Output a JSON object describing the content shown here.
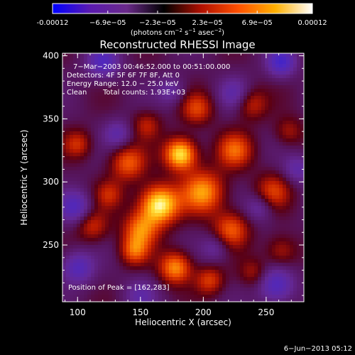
{
  "colorbar": {
    "ticks": [
      "-0.00012",
      "−6.9e−05",
      "−2.3e−05",
      "2.3e−05",
      "6.9e−05",
      "0.00012"
    ],
    "tick_values": [
      -0.00012,
      -6.9e-05,
      -2.3e-05,
      2.3e-05,
      6.9e-05,
      0.00012
    ],
    "range": [
      -0.00012,
      0.00012
    ],
    "unit_base": "(photons cm",
    "unit_exp1": "−2",
    "unit_mid": " s",
    "unit_exp2": "−1",
    "unit_mid2": " asec",
    "unit_exp3": "−2",
    "unit_end": ")",
    "colors": [
      "#0000ff",
      "#5a1ab0",
      "#6a2a8a",
      "#000000",
      "#b01000",
      "#ff5000",
      "#ffb000",
      "#ffffff"
    ]
  },
  "chart_data": {
    "type": "heatmap",
    "title": "Reconstructed RHESSI Image",
    "xlabel": "Heliocentric X (arcsec)",
    "ylabel": "Heliocentric Y (arcsec)",
    "xlim": [
      88,
      280
    ],
    "ylim": [
      205,
      402
    ],
    "xticks": [
      100,
      150,
      200,
      250
    ],
    "yticks": [
      250,
      300,
      350,
      400
    ],
    "annotations": {
      "time": "7−Mar−2003 00:46:52.000 to 00:51:00.000",
      "detectors": "Detectors: 4F 5F 6F 7F 8F, Att 0",
      "energy": "Energy Range: 12.0 − 25.0 keV",
      "method": "Clean",
      "counts": "Total counts: 1.93E+03",
      "peak": "Position of Peak = [162,283]"
    },
    "peak": [
      162,
      283
    ],
    "blobs": [
      {
        "x": 165,
        "y": 282,
        "amp": 1.0,
        "s": 11
      },
      {
        "x": 182,
        "y": 322,
        "amp": 0.95,
        "s": 9
      },
      {
        "x": 200,
        "y": 292,
        "amp": 0.7,
        "s": 12
      },
      {
        "x": 140,
        "y": 315,
        "amp": 0.55,
        "s": 10
      },
      {
        "x": 150,
        "y": 262,
        "amp": 0.6,
        "s": 10
      },
      {
        "x": 178,
        "y": 232,
        "amp": 0.7,
        "s": 9
      },
      {
        "x": 225,
        "y": 325,
        "amp": 0.55,
        "s": 10
      },
      {
        "x": 222,
        "y": 262,
        "amp": 0.55,
        "s": 10
      },
      {
        "x": 255,
        "y": 292,
        "amp": 0.45,
        "s": 10
      },
      {
        "x": 145,
        "y": 245,
        "amp": 0.5,
        "s": 8
      },
      {
        "x": 112,
        "y": 265,
        "amp": 0.4,
        "s": 9
      },
      {
        "x": 195,
        "y": 358,
        "amp": 0.45,
        "s": 9
      },
      {
        "x": 238,
        "y": 362,
        "amp": 0.4,
        "s": 9
      },
      {
        "x": 100,
        "y": 330,
        "amp": 0.4,
        "s": 8
      },
      {
        "x": 205,
        "y": 222,
        "amp": 0.45,
        "s": 8
      },
      {
        "x": 262,
        "y": 245,
        "amp": 0.35,
        "s": 9
      },
      {
        "x": 155,
        "y": 345,
        "amp": 0.35,
        "s": 8
      },
      {
        "x": 125,
        "y": 290,
        "amp": 0.35,
        "s": 8
      },
      {
        "x": 240,
        "y": 228,
        "amp": 0.3,
        "s": 8
      },
      {
        "x": 268,
        "y": 340,
        "amp": 0.3,
        "s": 8
      },
      {
        "x": 120,
        "y": 395,
        "amp": -0.5,
        "s": 9
      },
      {
        "x": 262,
        "y": 395,
        "amp": -0.6,
        "s": 8
      },
      {
        "x": 98,
        "y": 280,
        "amp": -0.5,
        "s": 9
      },
      {
        "x": 100,
        "y": 232,
        "amp": -0.5,
        "s": 9
      },
      {
        "x": 258,
        "y": 218,
        "amp": -0.55,
        "s": 10
      },
      {
        "x": 225,
        "y": 370,
        "amp": -0.35,
        "s": 9
      },
      {
        "x": 245,
        "y": 280,
        "amp": -0.35,
        "s": 8
      },
      {
        "x": 175,
        "y": 372,
        "amp": -0.3,
        "s": 8
      },
      {
        "x": 210,
        "y": 248,
        "amp": -0.3,
        "s": 8
      },
      {
        "x": 132,
        "y": 338,
        "amp": -0.35,
        "s": 8
      },
      {
        "x": 150,
        "y": 210,
        "amp": -0.3,
        "s": 9
      },
      {
        "x": 275,
        "y": 310,
        "amp": -0.35,
        "s": 8
      }
    ]
  },
  "footer": {
    "date": "6−Jun−2013 05:12"
  }
}
